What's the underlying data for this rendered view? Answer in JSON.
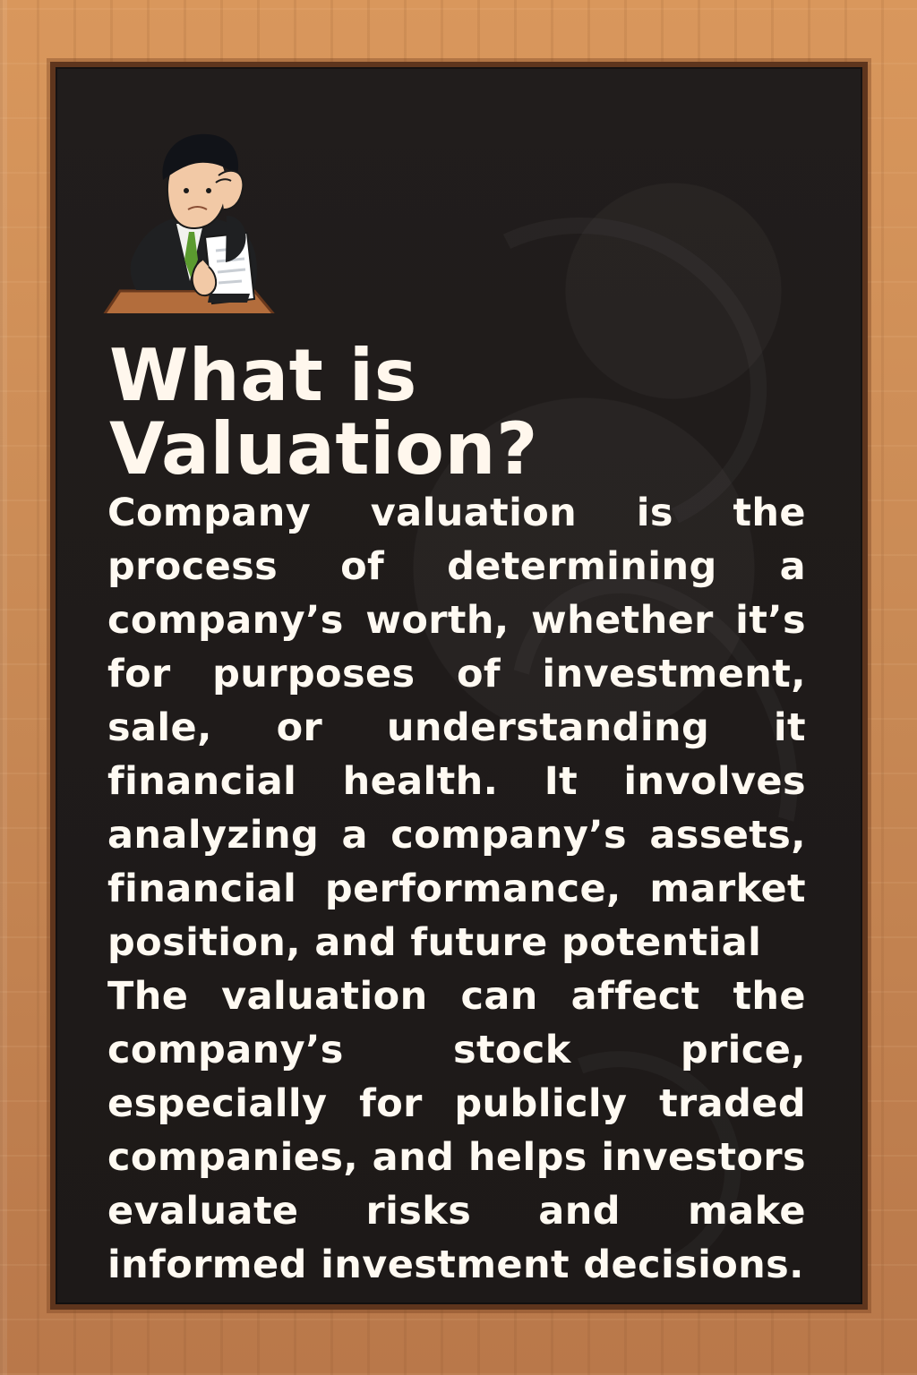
{
  "title": "What is Valuation?",
  "body": {
    "paragraph_1": "Company valuation is the process of determining a company’s worth, whether it’s for purposes of investment, sale, or understanding it financial health. It involves analyzing a company’s assets, financial performance, market position, and future potential",
    "paragraph_2": "The valuation can affect the company’s stock price, especially for publicly traded companies, and helps investors evaluate risks and make informed investment decisions."
  },
  "colors": {
    "board": "#211d1c",
    "frame": "#c98a55",
    "text": "#fffaf2"
  },
  "icons": {
    "character": "businessman-reading-document-icon"
  }
}
